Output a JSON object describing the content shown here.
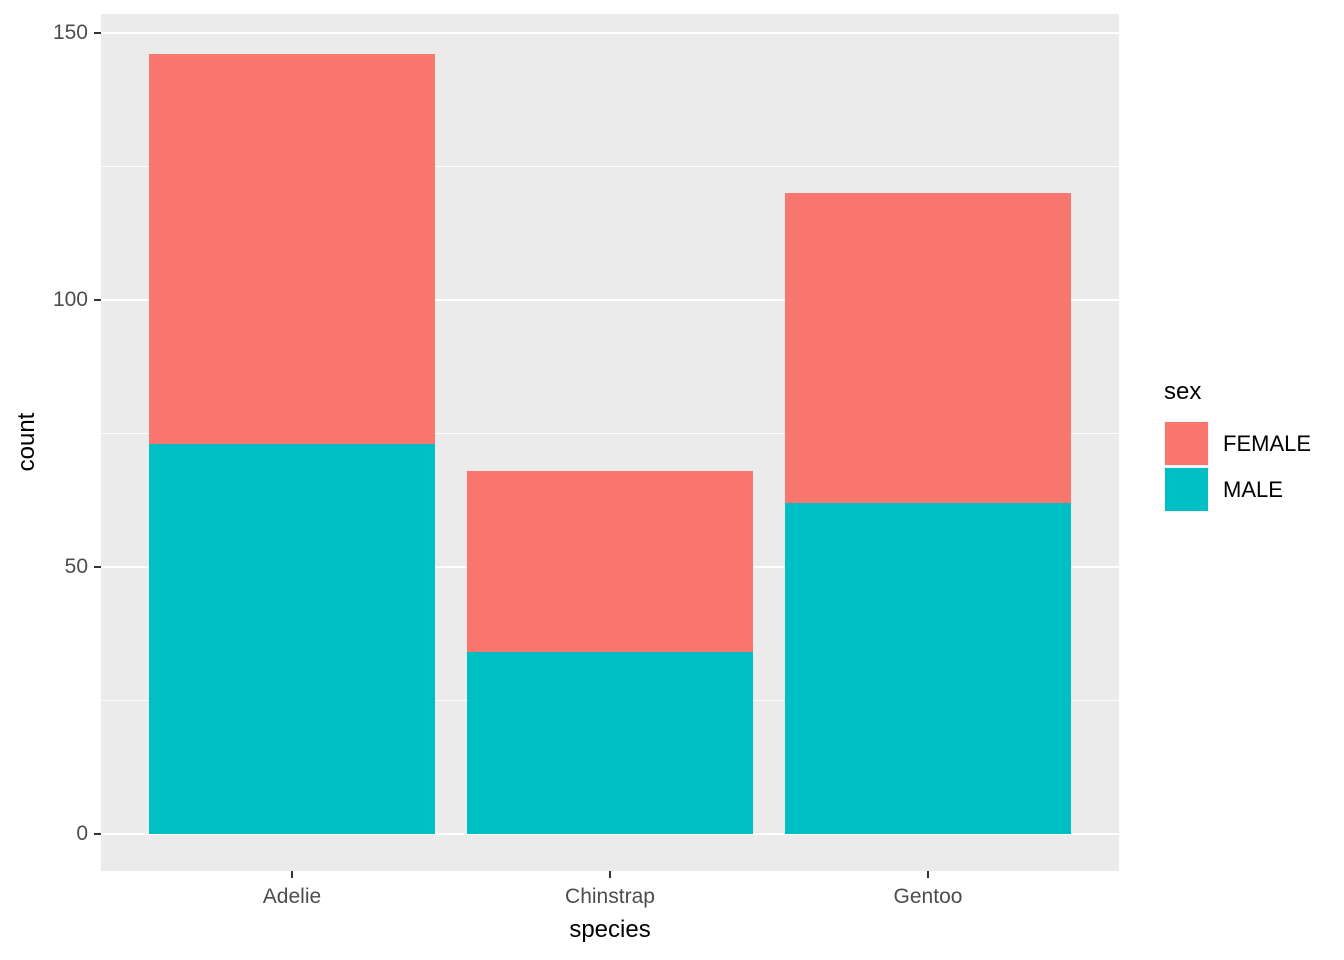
{
  "chart_data": {
    "type": "bar",
    "stacked": true,
    "title": "",
    "xlabel": "species",
    "ylabel": "count",
    "categories": [
      "Adelie",
      "Chinstrap",
      "Gentoo"
    ],
    "series": [
      {
        "name": "FEMALE",
        "color": "#F8766D",
        "values": [
          73,
          34,
          58
        ]
      },
      {
        "name": "MALE",
        "color": "#00BFC4",
        "values": [
          73,
          34,
          62
        ]
      }
    ],
    "totals": [
      146,
      68,
      120
    ],
    "y_ticks": [
      0,
      50,
      100,
      150
    ],
    "y_minor_ticks": [
      25,
      75,
      125
    ],
    "ylim": [
      0,
      153
    ],
    "grid": true,
    "legend": {
      "title": "sex",
      "position": "right"
    },
    "colors": {
      "panel_background": "#EBEBEB",
      "gridline": "#FFFFFF",
      "tick_label": "#4D4D4D",
      "axis_title": "#000000",
      "tick_mark": "#333333",
      "legend_key_background": "#F2F2F2"
    }
  }
}
